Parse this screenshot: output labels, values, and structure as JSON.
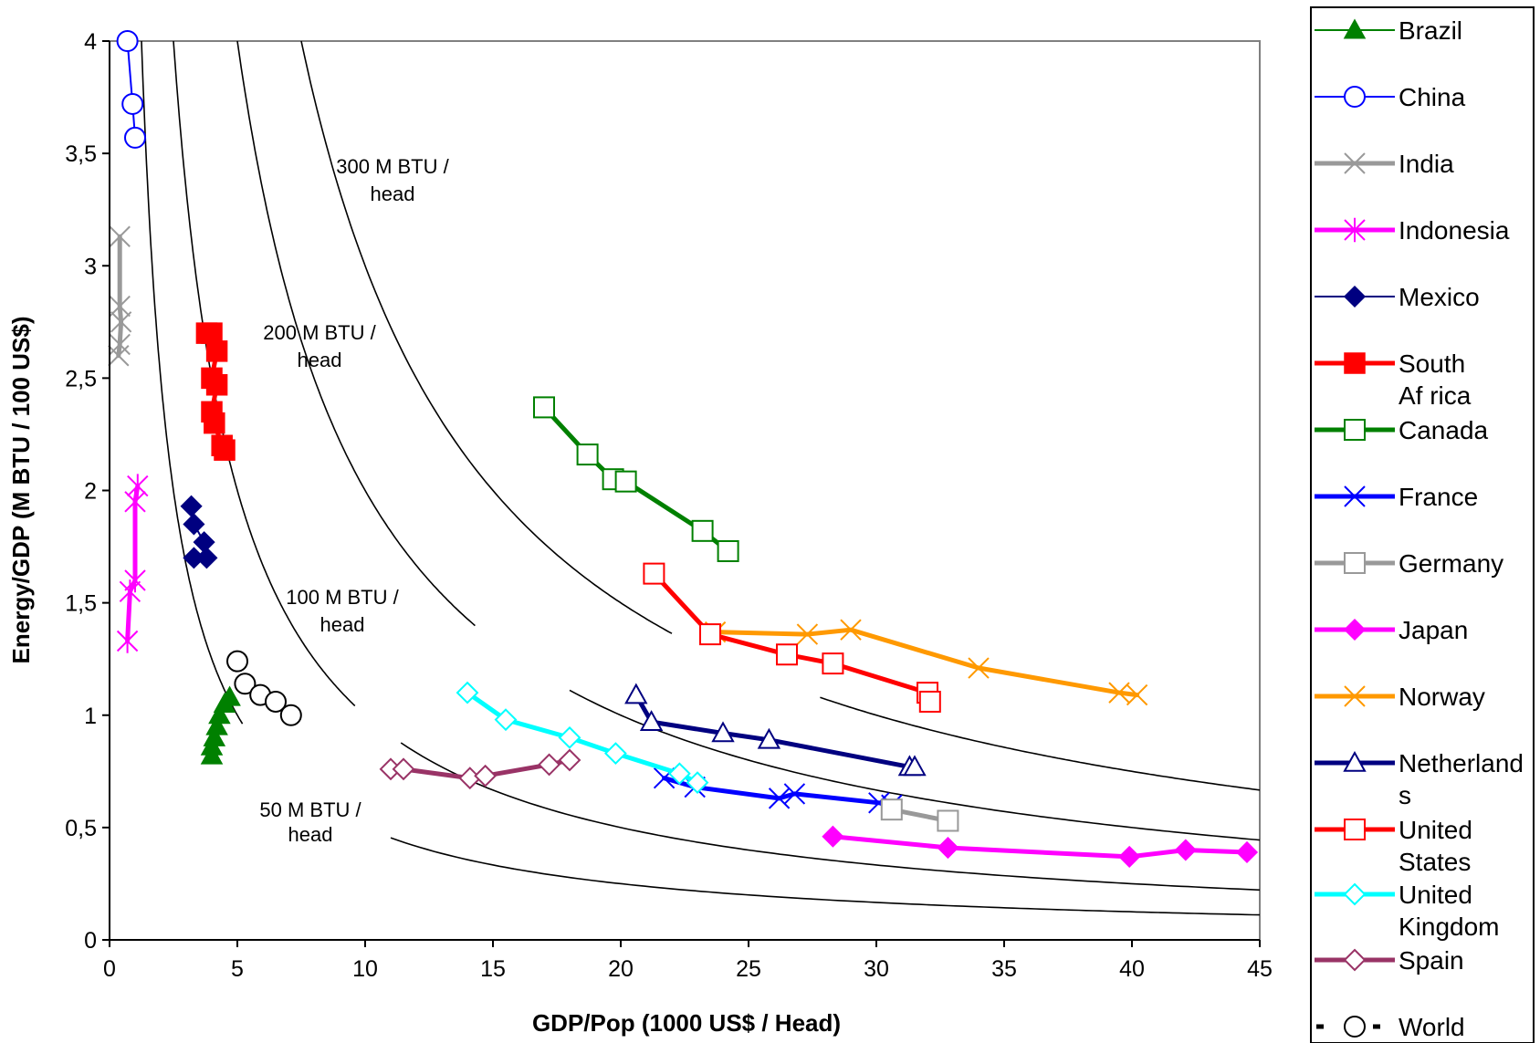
{
  "chart_data": {
    "type": "line",
    "xlabel": "GDP/Pop (1000 US$ / Head)",
    "ylabel": "Energy/GDP (M BTU / 100 US$)",
    "xlim": [
      0,
      45
    ],
    "ylim": [
      0,
      4
    ],
    "x_ticks": [
      "0",
      "5",
      "10",
      "15",
      "20",
      "25",
      "30",
      "35",
      "40",
      "45"
    ],
    "y_ticks": [
      "0",
      "0,5",
      "1",
      "1,5",
      "2",
      "2,5",
      "3",
      "3,5",
      "4"
    ],
    "grid": false,
    "legend_position": "right",
    "isolines": [
      {
        "label_line1": "50 M BTU /",
        "label_line2": "head",
        "energy_per_head": 50
      },
      {
        "label_line1": "100 M BTU /",
        "label_line2": "head",
        "energy_per_head": 100
      },
      {
        "label_line1": "200 M BTU /",
        "label_line2": "head",
        "energy_per_head": 200
      },
      {
        "label_line1": "300 M BTU /",
        "label_line2": "head",
        "energy_per_head": 300
      }
    ],
    "series": [
      {
        "name": "Brazil",
        "color": "#008000",
        "marker": "triangle-filled",
        "width": 2,
        "points": [
          [
            4.0,
            0.82
          ],
          [
            4.0,
            0.86
          ],
          [
            4.1,
            0.9
          ],
          [
            4.2,
            0.95
          ],
          [
            4.3,
            1.0
          ],
          [
            4.5,
            1.05
          ],
          [
            4.7,
            1.08
          ]
        ]
      },
      {
        "name": "China",
        "color": "#0000ff",
        "marker": "circle-open",
        "width": 2,
        "points": [
          [
            0.7,
            4.0
          ],
          [
            0.9,
            3.72
          ],
          [
            1.0,
            3.57
          ]
        ]
      },
      {
        "name": "India",
        "color": "#999999",
        "marker": "x",
        "width": 5,
        "points": [
          [
            0.4,
            3.13
          ],
          [
            0.4,
            2.82
          ],
          [
            0.45,
            2.75
          ],
          [
            0.4,
            2.65
          ],
          [
            0.35,
            2.6
          ]
        ]
      },
      {
        "name": "Indonesia",
        "color": "#ff00ff",
        "marker": "star",
        "width": 5,
        "points": [
          [
            0.7,
            1.33
          ],
          [
            0.8,
            1.55
          ],
          [
            1.0,
            1.6
          ],
          [
            1.0,
            1.95
          ],
          [
            1.1,
            2.02
          ]
        ]
      },
      {
        "name": "Mexico",
        "color": "#000080",
        "marker": "diamond-filled",
        "width": 2,
        "points": [
          [
            3.2,
            1.93
          ],
          [
            3.3,
            1.85
          ],
          [
            3.7,
            1.77
          ],
          [
            3.8,
            1.7
          ],
          [
            3.3,
            1.7
          ]
        ]
      },
      {
        "name": "South Africa",
        "color": "#ff0000",
        "marker": "square-filled",
        "width": 5,
        "points": [
          [
            3.8,
            2.7
          ],
          [
            4.0,
            2.7
          ],
          [
            4.2,
            2.62
          ],
          [
            4.0,
            2.5
          ],
          [
            4.2,
            2.47
          ],
          [
            4.0,
            2.35
          ],
          [
            4.1,
            2.3
          ],
          [
            4.4,
            2.2
          ],
          [
            4.5,
            2.18
          ]
        ]
      },
      {
        "name": "Canada",
        "color": "#008000",
        "marker": "square-open",
        "width": 5,
        "points": [
          [
            17.0,
            2.37
          ],
          [
            18.7,
            2.16
          ],
          [
            19.7,
            2.05
          ],
          [
            20.2,
            2.04
          ],
          [
            23.2,
            1.82
          ],
          [
            24.2,
            1.73
          ]
        ]
      },
      {
        "name": "France",
        "color": "#0000ff",
        "marker": "x",
        "width": 5,
        "points": [
          [
            21.7,
            0.72
          ],
          [
            22.9,
            0.68
          ],
          [
            26.2,
            0.63
          ],
          [
            26.8,
            0.65
          ],
          [
            30.1,
            0.61
          ],
          [
            30.6,
            0.6
          ]
        ]
      },
      {
        "name": "Germany",
        "color": "#999999",
        "marker": "square-open",
        "width": 5,
        "points": [
          [
            30.6,
            0.58
          ],
          [
            32.8,
            0.53
          ]
        ]
      },
      {
        "name": "Japan",
        "color": "#ff00ff",
        "marker": "diamond-filled",
        "width": 5,
        "points": [
          [
            28.3,
            0.46
          ],
          [
            32.8,
            0.41
          ],
          [
            39.9,
            0.37
          ],
          [
            42.1,
            0.4
          ],
          [
            44.5,
            0.39
          ]
        ]
      },
      {
        "name": "Norway",
        "color": "#ff9900",
        "marker": "x",
        "width": 5,
        "points": [
          [
            23.7,
            1.37
          ],
          [
            27.3,
            1.36
          ],
          [
            29.0,
            1.38
          ],
          [
            34.0,
            1.21
          ],
          [
            39.5,
            1.1
          ],
          [
            40.2,
            1.09
          ]
        ]
      },
      {
        "name": "Netherlands",
        "color": "#000080",
        "marker": "triangle-open",
        "width": 5,
        "points": [
          [
            20.6,
            1.09
          ],
          [
            21.2,
            0.97
          ],
          [
            24.0,
            0.92
          ],
          [
            25.8,
            0.89
          ],
          [
            31.3,
            0.77
          ],
          [
            31.5,
            0.77
          ]
        ]
      },
      {
        "name": "United States",
        "color": "#ff0000",
        "marker": "square-open",
        "width": 5,
        "points": [
          [
            21.3,
            1.63
          ],
          [
            23.5,
            1.36
          ],
          [
            26.5,
            1.27
          ],
          [
            28.3,
            1.23
          ],
          [
            32.0,
            1.1
          ],
          [
            32.1,
            1.06
          ]
        ]
      },
      {
        "name": "United Kingdom",
        "color": "#00ffff",
        "marker": "diamond-open",
        "width": 5,
        "points": [
          [
            14.0,
            1.1
          ],
          [
            15.5,
            0.98
          ],
          [
            18.0,
            0.9
          ],
          [
            19.8,
            0.83
          ],
          [
            22.3,
            0.74
          ],
          [
            23.0,
            0.7
          ]
        ]
      },
      {
        "name": "Spain",
        "color": "#993366",
        "marker": "diamond-open",
        "width": 5,
        "points": [
          [
            11.0,
            0.76
          ],
          [
            11.5,
            0.76
          ],
          [
            14.1,
            0.72
          ],
          [
            14.7,
            0.73
          ],
          [
            17.2,
            0.78
          ],
          [
            18.0,
            0.8
          ]
        ]
      },
      {
        "name": "World",
        "color": "#000000",
        "marker": "circle-open",
        "width": 3,
        "dashed": true,
        "points": [
          [
            5.0,
            1.24
          ],
          [
            5.3,
            1.14
          ],
          [
            5.9,
            1.09
          ],
          [
            6.5,
            1.06
          ],
          [
            7.1,
            1.0
          ]
        ]
      }
    ]
  },
  "legend": {
    "entries": [
      {
        "line1": "Brazil",
        "line2": "",
        "line3": ""
      },
      {
        "line1": "China",
        "line2": "",
        "line3": ""
      },
      {
        "line1": "India",
        "line2": "",
        "line3": ""
      },
      {
        "line1": "Indonesia",
        "line2": "",
        "line3": ""
      },
      {
        "line1": "Mexico",
        "line2": "",
        "line3": ""
      },
      {
        "line1": "South",
        "line2": "Af rica",
        "line3": ""
      },
      {
        "line1": "Canada",
        "line2": "",
        "line3": ""
      },
      {
        "line1": "France",
        "line2": "",
        "line3": ""
      },
      {
        "line1": "Germany",
        "line2": "",
        "line3": ""
      },
      {
        "line1": "Japan",
        "line2": "",
        "line3": ""
      },
      {
        "line1": "Norway",
        "line2": "",
        "line3": ""
      },
      {
        "line1": "Netherland",
        "line2": "s",
        "line3": ""
      },
      {
        "line1": "United",
        "line2": "States",
        "line3": ""
      },
      {
        "line1": "United",
        "line2": "Kingdom",
        "line3": ""
      },
      {
        "line1": "Spain",
        "line2": "",
        "line3": ""
      },
      {
        "line1": "World",
        "line2": "",
        "line3": ""
      }
    ]
  }
}
